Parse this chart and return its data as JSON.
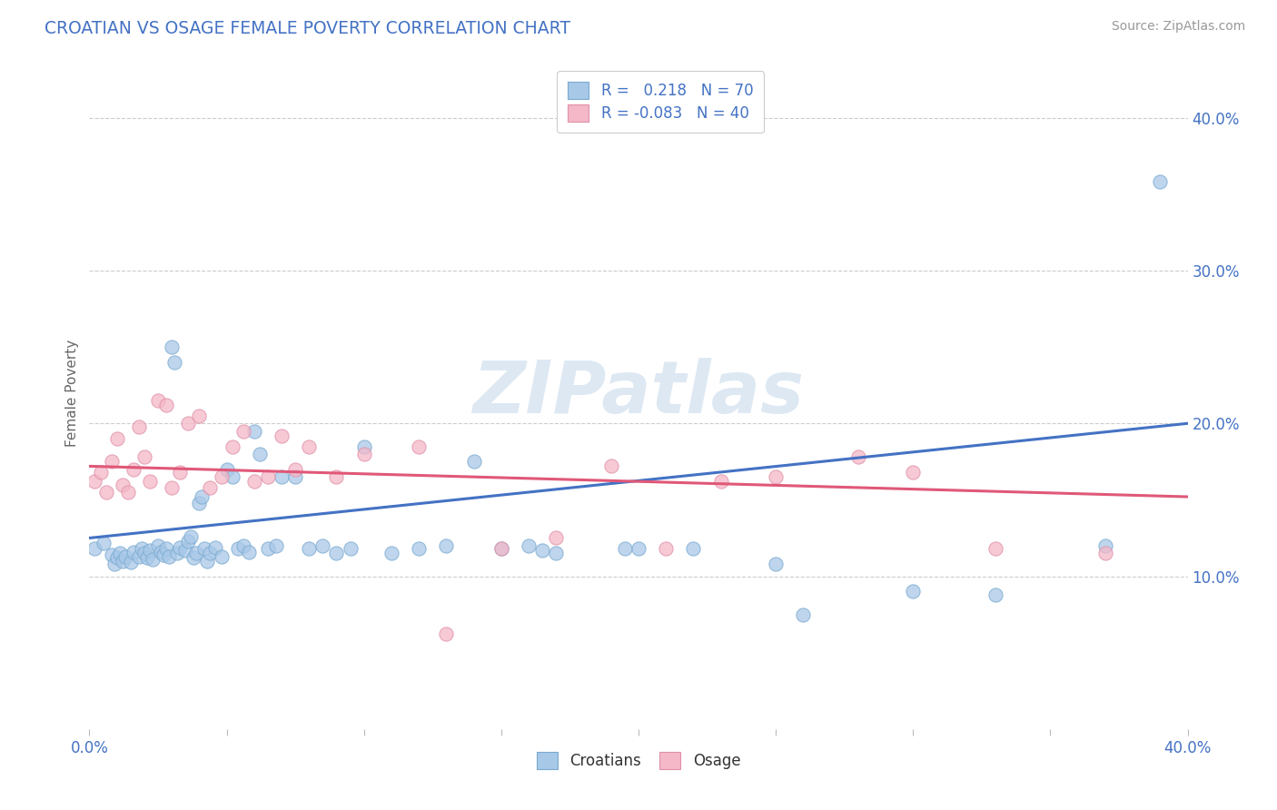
{
  "title": "CROATIAN VS OSAGE FEMALE POVERTY CORRELATION CHART",
  "source": "Source: ZipAtlas.com",
  "ylabel": "Female Poverty",
  "xlim": [
    0.0,
    0.4
  ],
  "ylim": [
    0.0,
    0.44
  ],
  "x_ticks": [
    0.0,
    0.05,
    0.1,
    0.15,
    0.2,
    0.25,
    0.3,
    0.35,
    0.4
  ],
  "x_tick_labels": [
    "0.0%",
    "",
    "",
    "",
    "",
    "",
    "",
    "",
    "40.0%"
  ],
  "y_ticks_right": [
    0.1,
    0.2,
    0.3,
    0.4
  ],
  "y_tick_labels_right": [
    "10.0%",
    "20.0%",
    "30.0%",
    "40.0%"
  ],
  "croatian_color": "#a8c8e8",
  "croatian_edge_color": "#7aaad0",
  "osage_color": "#f4b8c8",
  "osage_edge_color": "#e090a8",
  "croatian_line_color": "#4472c4",
  "osage_line_color": "#e05878",
  "R_croatian": 0.218,
  "N_croatian": 70,
  "R_osage": -0.083,
  "N_osage": 40,
  "watermark": "ZIPatlas",
  "title_color": "#4472c4",
  "source_color": "#999999",
  "legend_text_color": "#4472c4",
  "croatian_scatter_x": [
    0.002,
    0.005,
    0.008,
    0.009,
    0.01,
    0.011,
    0.012,
    0.013,
    0.015,
    0.016,
    0.018,
    0.019,
    0.02,
    0.021,
    0.022,
    0.023,
    0.025,
    0.026,
    0.027,
    0.028,
    0.029,
    0.03,
    0.031,
    0.032,
    0.033,
    0.035,
    0.036,
    0.037,
    0.038,
    0.039,
    0.04,
    0.041,
    0.042,
    0.043,
    0.044,
    0.046,
    0.048,
    0.05,
    0.052,
    0.054,
    0.056,
    0.058,
    0.06,
    0.062,
    0.065,
    0.068,
    0.07,
    0.075,
    0.08,
    0.085,
    0.09,
    0.095,
    0.1,
    0.11,
    0.12,
    0.13,
    0.14,
    0.15,
    0.16,
    0.165,
    0.17,
    0.195,
    0.2,
    0.22,
    0.25,
    0.26,
    0.3,
    0.33,
    0.37,
    0.39
  ],
  "croatian_scatter_y": [
    0.118,
    0.122,
    0.114,
    0.108,
    0.112,
    0.115,
    0.11,
    0.113,
    0.109,
    0.116,
    0.113,
    0.118,
    0.115,
    0.112,
    0.117,
    0.111,
    0.12,
    0.116,
    0.114,
    0.118,
    0.113,
    0.25,
    0.24,
    0.115,
    0.119,
    0.117,
    0.123,
    0.126,
    0.112,
    0.115,
    0.148,
    0.152,
    0.118,
    0.11,
    0.115,
    0.119,
    0.113,
    0.17,
    0.165,
    0.118,
    0.12,
    0.116,
    0.195,
    0.18,
    0.118,
    0.12,
    0.165,
    0.165,
    0.118,
    0.12,
    0.115,
    0.118,
    0.185,
    0.115,
    0.118,
    0.12,
    0.175,
    0.118,
    0.12,
    0.117,
    0.115,
    0.118,
    0.118,
    0.118,
    0.108,
    0.075,
    0.09,
    0.088,
    0.12,
    0.358
  ],
  "osage_scatter_x": [
    0.002,
    0.004,
    0.006,
    0.008,
    0.01,
    0.012,
    0.014,
    0.016,
    0.018,
    0.02,
    0.022,
    0.025,
    0.028,
    0.03,
    0.033,
    0.036,
    0.04,
    0.044,
    0.048,
    0.052,
    0.056,
    0.06,
    0.065,
    0.07,
    0.075,
    0.08,
    0.09,
    0.1,
    0.12,
    0.13,
    0.15,
    0.17,
    0.19,
    0.21,
    0.23,
    0.25,
    0.28,
    0.3,
    0.33,
    0.37
  ],
  "osage_scatter_y": [
    0.162,
    0.168,
    0.155,
    0.175,
    0.19,
    0.16,
    0.155,
    0.17,
    0.198,
    0.178,
    0.162,
    0.215,
    0.212,
    0.158,
    0.168,
    0.2,
    0.205,
    0.158,
    0.165,
    0.185,
    0.195,
    0.162,
    0.165,
    0.192,
    0.17,
    0.185,
    0.165,
    0.18,
    0.185,
    0.062,
    0.118,
    0.125,
    0.172,
    0.118,
    0.162,
    0.165,
    0.178,
    0.168,
    0.118,
    0.115
  ]
}
